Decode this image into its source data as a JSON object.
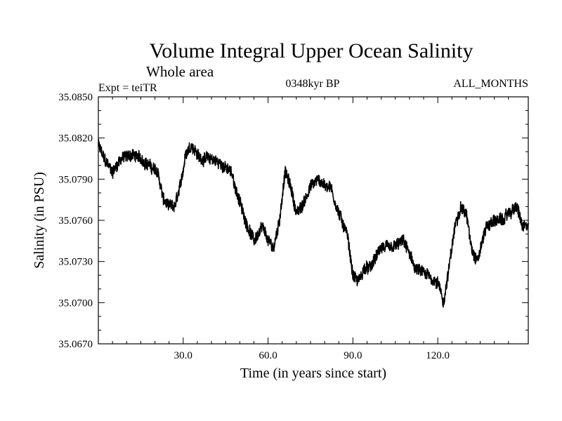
{
  "chart_data": {
    "type": "line",
    "title": "Volume Integral Upper Ocean Salinity",
    "subtitle": "Whole area",
    "annotations": {
      "left": "Expt = teiTR",
      "center": "0348kyr BP",
      "right": "ALL_MONTHS"
    },
    "xlabel": "Time (in years since start)",
    "ylabel": "Salinity (in PSU)",
    "xlim": [
      0,
      152
    ],
    "ylim": [
      35.067,
      35.085
    ],
    "x_ticks": [
      30,
      60,
      90,
      120
    ],
    "x_tick_labels": [
      "30.0",
      "60.0",
      "90.0",
      "120.0"
    ],
    "y_ticks": [
      35.067,
      35.07,
      35.073,
      35.076,
      35.079,
      35.082,
      35.085
    ],
    "y_tick_labels": [
      "35.0670",
      "35.0700",
      "35.0730",
      "35.0760",
      "35.0790",
      "35.0820",
      "35.0850"
    ],
    "grid": false,
    "series": [
      {
        "name": "salinity",
        "noise_amplitude": 0.0006,
        "samples_per_year": 12,
        "x": [
          0,
          2,
          5,
          8,
          12,
          15,
          18,
          21,
          23,
          25,
          27,
          29,
          31,
          33,
          36,
          40,
          44,
          47,
          49,
          52,
          55,
          58,
          60,
          62,
          64,
          66,
          68,
          70,
          72,
          75,
          78,
          80,
          82,
          85,
          88,
          90,
          92,
          94,
          96,
          100,
          104,
          108,
          110,
          112,
          116,
          120,
          122,
          124,
          126,
          128,
          130,
          132,
          134,
          137,
          140,
          143,
          145,
          148,
          150,
          152
        ],
        "y": [
          35.0815,
          35.0805,
          35.0795,
          35.0805,
          35.0808,
          35.0805,
          35.08,
          35.0795,
          35.0775,
          35.077,
          35.077,
          35.0785,
          35.081,
          35.0815,
          35.0805,
          35.0805,
          35.08,
          35.0795,
          35.078,
          35.076,
          35.0745,
          35.0755,
          35.0745,
          35.074,
          35.076,
          35.0795,
          35.0785,
          35.0765,
          35.077,
          35.0785,
          35.079,
          35.0785,
          35.0785,
          35.0765,
          35.075,
          35.072,
          35.0715,
          35.0725,
          35.0725,
          35.074,
          35.074,
          35.0745,
          35.0735,
          35.0725,
          35.072,
          35.0715,
          35.07,
          35.0725,
          35.0755,
          35.077,
          35.0765,
          35.074,
          35.073,
          35.0755,
          35.076,
          35.076,
          35.0765,
          35.077,
          35.0755,
          35.0755
        ]
      }
    ]
  }
}
